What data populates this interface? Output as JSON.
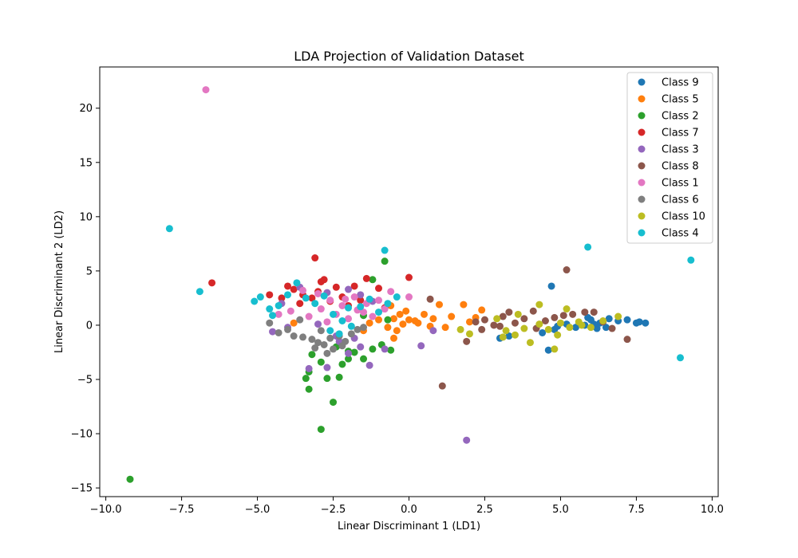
{
  "chart_data": {
    "type": "scatter",
    "title": "LDA Projection of Validation Dataset",
    "xlabel": "Linear Discriminant 1 (LD1)",
    "ylabel": "Linear Discriminant 2 (LD2)",
    "xlim": [
      -10.2,
      10.2
    ],
    "ylim": [
      -15.8,
      23.8
    ],
    "xticks": [
      -10.0,
      -7.5,
      -5.0,
      -2.5,
      0.0,
      2.5,
      5.0,
      7.5,
      10.0
    ],
    "xtick_labels": [
      "−10.0",
      "−7.5",
      "−5.0",
      "−2.5",
      "0.0",
      "2.5",
      "5.0",
      "7.5",
      "10.0"
    ],
    "yticks": [
      -15,
      -10,
      -5,
      0,
      5,
      10,
      15,
      20
    ],
    "ytick_labels": [
      "−15",
      "−10",
      "−5",
      "0",
      "5",
      "10",
      "15",
      "20"
    ],
    "grid": false,
    "legend_position": "top-right",
    "series": [
      {
        "name": "Class 9",
        "color": "#1f77b4",
        "points": [
          [
            6.0,
            0.5
          ],
          [
            6.3,
            0.2
          ],
          [
            6.6,
            0.6
          ],
          [
            6.9,
            0.4
          ],
          [
            7.2,
            0.5
          ],
          [
            7.5,
            0.2
          ],
          [
            7.8,
            0.2
          ],
          [
            7.6,
            0.3
          ],
          [
            5.5,
            -0.2
          ],
          [
            5.8,
            0.0
          ],
          [
            6.2,
            -0.3
          ],
          [
            6.5,
            -0.2
          ],
          [
            5.2,
            0.1
          ],
          [
            4.7,
            3.6
          ],
          [
            4.8,
            -0.4
          ],
          [
            4.4,
            -0.7
          ],
          [
            4.6,
            -2.3
          ],
          [
            3.0,
            -1.2
          ],
          [
            3.3,
            -1.0
          ],
          [
            5.9,
            0.7
          ],
          [
            6.1,
            0.1
          ],
          [
            4.9,
            -0.1
          ]
        ]
      },
      {
        "name": "Class 5",
        "color": "#ff7f0e",
        "points": [
          [
            -0.5,
            0.6
          ],
          [
            -0.3,
            1.0
          ],
          [
            0.0,
            0.5
          ],
          [
            0.3,
            0.2
          ],
          [
            0.5,
            1.0
          ],
          [
            0.8,
            0.6
          ],
          [
            1.0,
            1.9
          ],
          [
            1.4,
            0.8
          ],
          [
            1.8,
            1.9
          ],
          [
            2.2,
            0.7
          ],
          [
            2.4,
            1.4
          ],
          [
            -0.2,
            0.1
          ],
          [
            -0.4,
            -0.5
          ],
          [
            -1.0,
            0.5
          ],
          [
            -1.3,
            0.2
          ],
          [
            -0.7,
            -0.2
          ],
          [
            -0.5,
            -1.2
          ],
          [
            0.7,
            -0.1
          ],
          [
            1.2,
            -0.2
          ],
          [
            -3.8,
            0.2
          ],
          [
            -1.5,
            -0.5
          ],
          [
            0.2,
            0.4
          ],
          [
            -0.1,
            1.3
          ],
          [
            -0.6,
            1.8
          ],
          [
            2.0,
            0.3
          ]
        ]
      },
      {
        "name": "Class 2",
        "color": "#2ca02c",
        "points": [
          [
            -9.2,
            -14.2
          ],
          [
            -2.9,
            -9.6
          ],
          [
            -2.5,
            -7.1
          ],
          [
            -3.3,
            -5.9
          ],
          [
            -3.4,
            -4.9
          ],
          [
            -2.7,
            -4.9
          ],
          [
            -2.3,
            -4.8
          ],
          [
            -3.2,
            -2.7
          ],
          [
            -2.0,
            -3.1
          ],
          [
            -1.8,
            -2.5
          ],
          [
            -1.5,
            -3.1
          ],
          [
            -1.2,
            -2.2
          ],
          [
            -0.9,
            -1.8
          ],
          [
            -0.6,
            -2.3
          ],
          [
            -1.2,
            4.2
          ],
          [
            -0.8,
            5.9
          ],
          [
            -0.7,
            0.5
          ],
          [
            -2.9,
            -3.4
          ],
          [
            -2.2,
            -3.6
          ],
          [
            -2.4,
            -2.0
          ],
          [
            -1.5,
            0.9
          ],
          [
            -3.3,
            -4.3
          ],
          [
            -2.0,
            -2.4
          ]
        ]
      },
      {
        "name": "Class 7",
        "color": "#d62728",
        "points": [
          [
            -6.5,
            3.9
          ],
          [
            -3.1,
            6.2
          ],
          [
            -2.8,
            4.2
          ],
          [
            -2.4,
            3.5
          ],
          [
            -1.8,
            3.6
          ],
          [
            -1.4,
            4.3
          ],
          [
            -1.0,
            3.4
          ],
          [
            0.0,
            4.4
          ],
          [
            -4.2,
            2.5
          ],
          [
            -3.8,
            3.3
          ],
          [
            -3.5,
            2.8
          ],
          [
            -3.2,
            2.5
          ],
          [
            -3.0,
            3.1
          ],
          [
            -2.6,
            2.2
          ],
          [
            -2.2,
            2.6
          ],
          [
            -4.6,
            2.8
          ],
          [
            -4.0,
            3.6
          ],
          [
            -0.8,
            1.6
          ],
          [
            -1.6,
            2.3
          ],
          [
            -2.0,
            1.8
          ],
          [
            -3.6,
            2.0
          ],
          [
            -2.9,
            4.0
          ]
        ]
      },
      {
        "name": "Class 3",
        "color": "#9467bd",
        "points": [
          [
            1.9,
            -10.6
          ],
          [
            -3.3,
            -4.0
          ],
          [
            -2.7,
            -3.9
          ],
          [
            -1.3,
            -3.7
          ],
          [
            -2.0,
            -2.6
          ],
          [
            -1.6,
            -2.0
          ],
          [
            -2.3,
            -1.5
          ],
          [
            -0.8,
            -2.2
          ],
          [
            0.4,
            -1.9
          ],
          [
            0.8,
            -0.5
          ],
          [
            -4.0,
            -0.2
          ],
          [
            -4.5,
            -0.6
          ],
          [
            -4.2,
            2.0
          ],
          [
            -3.6,
            3.5
          ],
          [
            -2.7,
            3.0
          ],
          [
            -2.0,
            3.3
          ],
          [
            -1.6,
            2.8
          ],
          [
            -1.2,
            2.2
          ],
          [
            -0.8,
            1.5
          ],
          [
            -2.4,
            -1.0
          ],
          [
            -1.8,
            -1.2
          ],
          [
            -3.0,
            0.1
          ]
        ]
      },
      {
        "name": "Class 8",
        "color": "#8c564b",
        "points": [
          [
            1.1,
            -5.6
          ],
          [
            5.2,
            5.1
          ],
          [
            7.2,
            -1.3
          ],
          [
            1.9,
            -1.5
          ],
          [
            2.2,
            0.3
          ],
          [
            2.5,
            0.5
          ],
          [
            2.8,
            0.0
          ],
          [
            3.1,
            0.8
          ],
          [
            3.5,
            0.2
          ],
          [
            3.8,
            0.6
          ],
          [
            4.1,
            1.3
          ],
          [
            4.5,
            0.4
          ],
          [
            4.8,
            0.7
          ],
          [
            5.1,
            0.9
          ],
          [
            5.4,
            1.0
          ],
          [
            5.8,
            1.2
          ],
          [
            6.1,
            1.2
          ],
          [
            6.4,
            0.3
          ],
          [
            6.7,
            -0.3
          ],
          [
            4.2,
            -0.3
          ],
          [
            3.3,
            1.2
          ],
          [
            2.4,
            -0.4
          ],
          [
            0.7,
            2.4
          ],
          [
            3.0,
            -0.1
          ]
        ]
      },
      {
        "name": "Class 1",
        "color": "#e377c2",
        "points": [
          [
            -6.7,
            21.7
          ],
          [
            -3.5,
            3.2
          ],
          [
            -3.0,
            2.9
          ],
          [
            -2.6,
            2.3
          ],
          [
            -2.2,
            1.8
          ],
          [
            -1.8,
            2.6
          ],
          [
            -1.4,
            2.0
          ],
          [
            -1.0,
            2.3
          ],
          [
            -0.6,
            3.1
          ],
          [
            0.0,
            2.6
          ],
          [
            -2.9,
            1.5
          ],
          [
            -2.4,
            1.0
          ],
          [
            -2.0,
            0.6
          ],
          [
            -1.5,
            1.2
          ],
          [
            -1.2,
            0.8
          ],
          [
            -0.8,
            1.5
          ],
          [
            -3.3,
            0.8
          ],
          [
            -2.7,
            0.3
          ],
          [
            -3.9,
            1.3
          ],
          [
            -4.3,
            1.0
          ],
          [
            -2.1,
            2.4
          ],
          [
            -1.7,
            1.4
          ]
        ]
      },
      {
        "name": "Class 6",
        "color": "#7f7f7f",
        "points": [
          [
            -4.6,
            0.2
          ],
          [
            -4.3,
            -0.7
          ],
          [
            -3.8,
            -1.0
          ],
          [
            -3.5,
            -1.1
          ],
          [
            -3.2,
            -1.3
          ],
          [
            -3.0,
            -1.6
          ],
          [
            -2.8,
            -1.8
          ],
          [
            -2.6,
            -1.2
          ],
          [
            -2.3,
            -1.0
          ],
          [
            -2.1,
            -1.5
          ],
          [
            -1.9,
            -0.8
          ],
          [
            -1.7,
            -0.4
          ],
          [
            -3.6,
            0.5
          ],
          [
            -2.5,
            -2.2
          ],
          [
            -2.2,
            -1.9
          ],
          [
            -2.9,
            -0.5
          ],
          [
            -1.5,
            -0.2
          ],
          [
            -3.1,
            -2.1
          ],
          [
            -2.7,
            -2.6
          ],
          [
            -4.0,
            -0.4
          ]
        ]
      },
      {
        "name": "Class 10",
        "color": "#bcbd22",
        "points": [
          [
            4.0,
            -1.6
          ],
          [
            4.8,
            -2.2
          ],
          [
            2.0,
            -0.8
          ],
          [
            1.7,
            -0.4
          ],
          [
            2.9,
            0.6
          ],
          [
            3.2,
            -0.5
          ],
          [
            3.5,
            -0.9
          ],
          [
            3.8,
            -0.3
          ],
          [
            4.3,
            0.1
          ],
          [
            4.6,
            -0.4
          ],
          [
            5.0,
            0.2
          ],
          [
            5.3,
            -0.2
          ],
          [
            5.6,
            0.3
          ],
          [
            6.0,
            -0.2
          ],
          [
            6.4,
            0.4
          ],
          [
            6.9,
            0.8
          ],
          [
            4.3,
            1.9
          ],
          [
            5.2,
            1.5
          ],
          [
            3.6,
            1.0
          ],
          [
            3.1,
            -1.1
          ],
          [
            4.9,
            -0.9
          ],
          [
            5.7,
            0.0
          ]
        ]
      },
      {
        "name": "Class 4",
        "color": "#17becf",
        "points": [
          [
            -7.9,
            8.9
          ],
          [
            -6.9,
            3.1
          ],
          [
            -5.1,
            2.2
          ],
          [
            -0.8,
            6.9
          ],
          [
            5.9,
            7.2
          ],
          [
            9.3,
            6.0
          ],
          [
            8.95,
            -3.0
          ],
          [
            -4.9,
            2.6
          ],
          [
            -4.6,
            1.5
          ],
          [
            -4.3,
            1.8
          ],
          [
            -4.0,
            2.8
          ],
          [
            -3.7,
            3.9
          ],
          [
            -3.4,
            2.5
          ],
          [
            -3.1,
            2.0
          ],
          [
            -2.8,
            2.7
          ],
          [
            -2.5,
            1.0
          ],
          [
            -2.2,
            0.4
          ],
          [
            -1.9,
            -0.1
          ],
          [
            -1.6,
            1.7
          ],
          [
            -1.3,
            2.4
          ],
          [
            -1.0,
            1.2
          ],
          [
            -0.7,
            2.0
          ],
          [
            -0.4,
            2.6
          ],
          [
            -2.6,
            -0.5
          ],
          [
            -2.3,
            -0.8
          ],
          [
            -4.5,
            0.9
          ],
          [
            -2.0,
            1.6
          ]
        ]
      }
    ]
  }
}
